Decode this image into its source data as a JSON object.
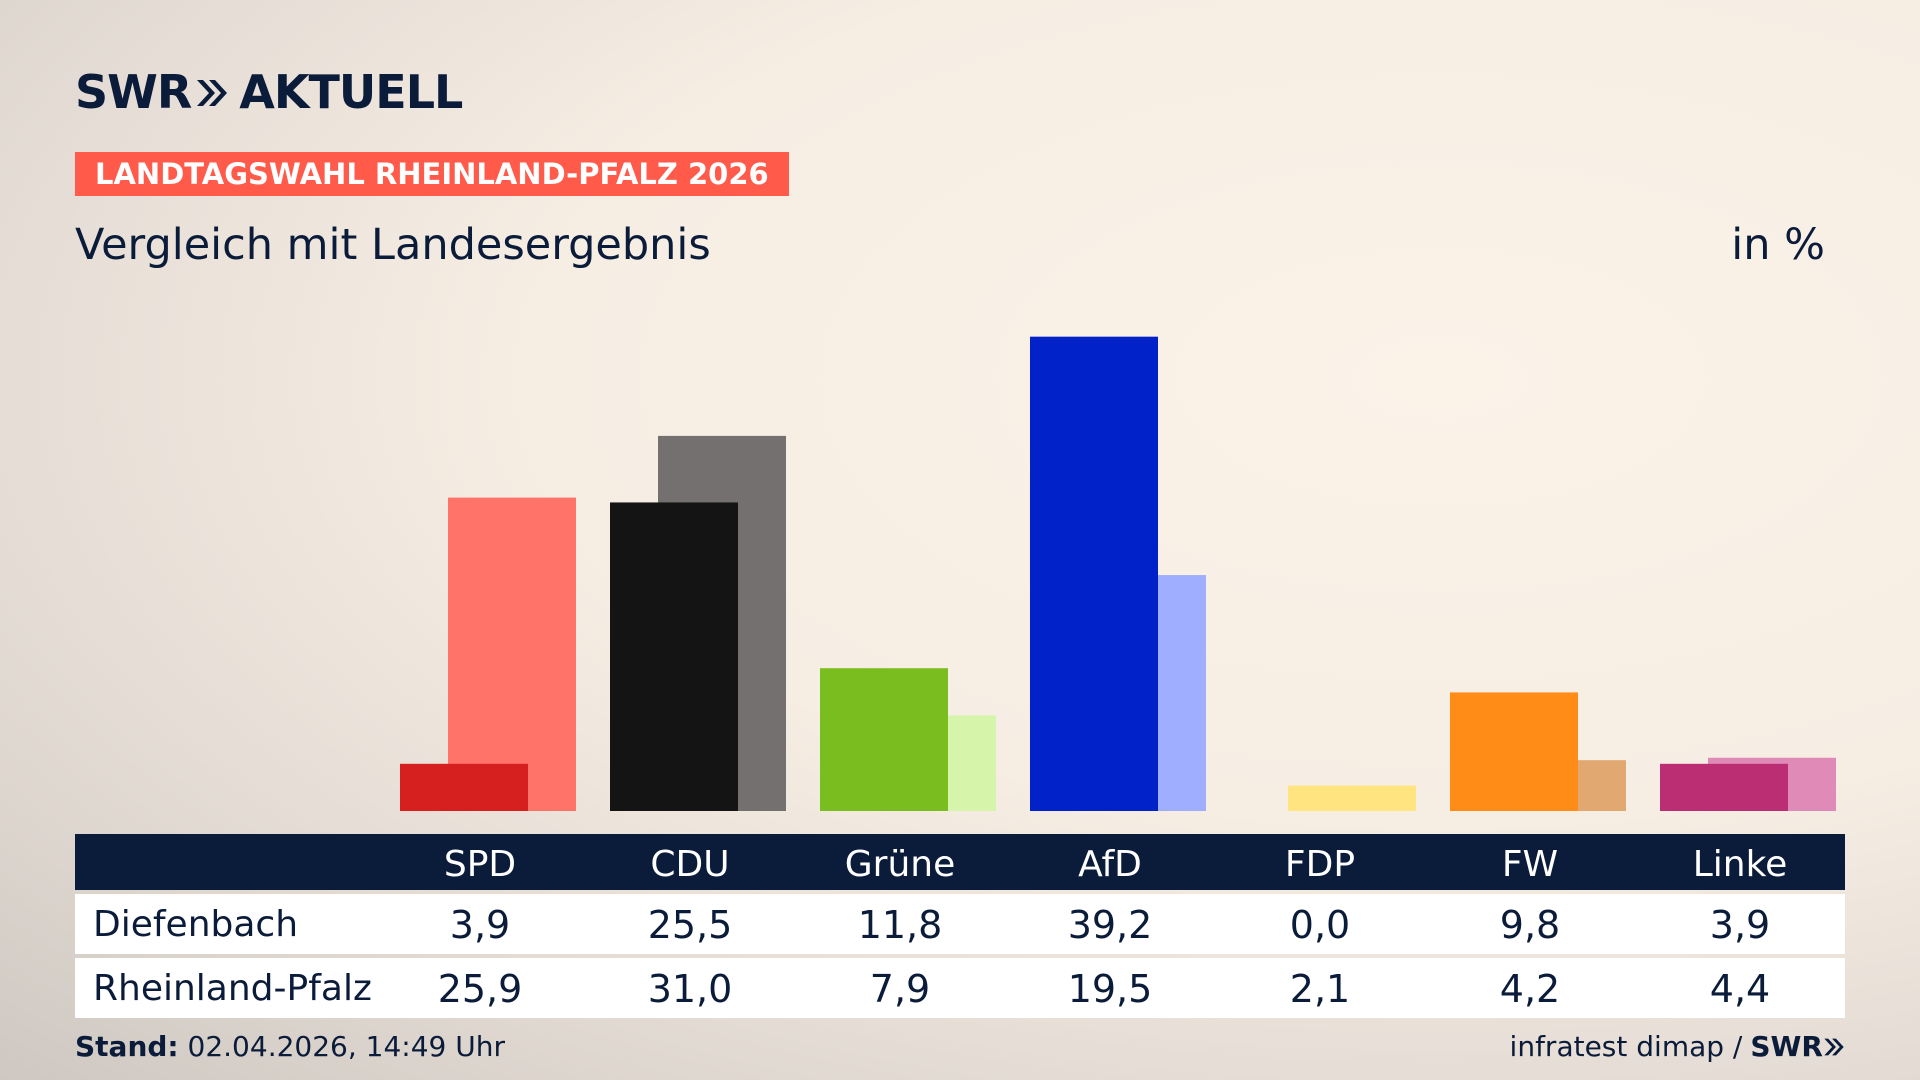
{
  "brand": {
    "logo_left": "SWR",
    "logo_right": "AKTUELL",
    "footer_logo": "SWR"
  },
  "badge": "LANDTAGSWAHL RHEINLAND-PFALZ 2026",
  "subtitle": "Vergleich mit Landesergebnis",
  "unit": "in %",
  "footer": {
    "stand_label": "Stand:",
    "stand_value": "02.04.2026, 14:49 Uhr",
    "source": "infratest dimap /"
  },
  "chart_data": {
    "type": "bar",
    "categories": [
      "SPD",
      "CDU",
      "Grüne",
      "AfD",
      "FDP",
      "FW",
      "Linke"
    ],
    "series": [
      {
        "name": "Diefenbach",
        "values": [
          "3,9",
          "25,5",
          "11,8",
          "39,2",
          "0,0",
          "9,8",
          "3,9"
        ],
        "numeric": [
          3.9,
          25.5,
          11.8,
          39.2,
          0.0,
          9.8,
          3.9
        ]
      },
      {
        "name": "Rheinland-Pfalz",
        "values": [
          "25,9",
          "31,0",
          "7,9",
          "19,5",
          "2,1",
          "4,2",
          "4,4"
        ],
        "numeric": [
          25.9,
          31.0,
          7.9,
          19.5,
          2.1,
          4.2,
          4.4
        ]
      }
    ],
    "colors": {
      "primary": [
        "#d62020",
        "#141414",
        "#7abd1e",
        "#0022c8",
        "#ffe066",
        "#ff8c16",
        "#bb2e74"
      ],
      "secondary": [
        "#ff7369",
        "#757070",
        "#d6f5ab",
        "#a0aeff",
        "#ffe47f",
        "#e2a872",
        "#e08ab8"
      ]
    }
  }
}
